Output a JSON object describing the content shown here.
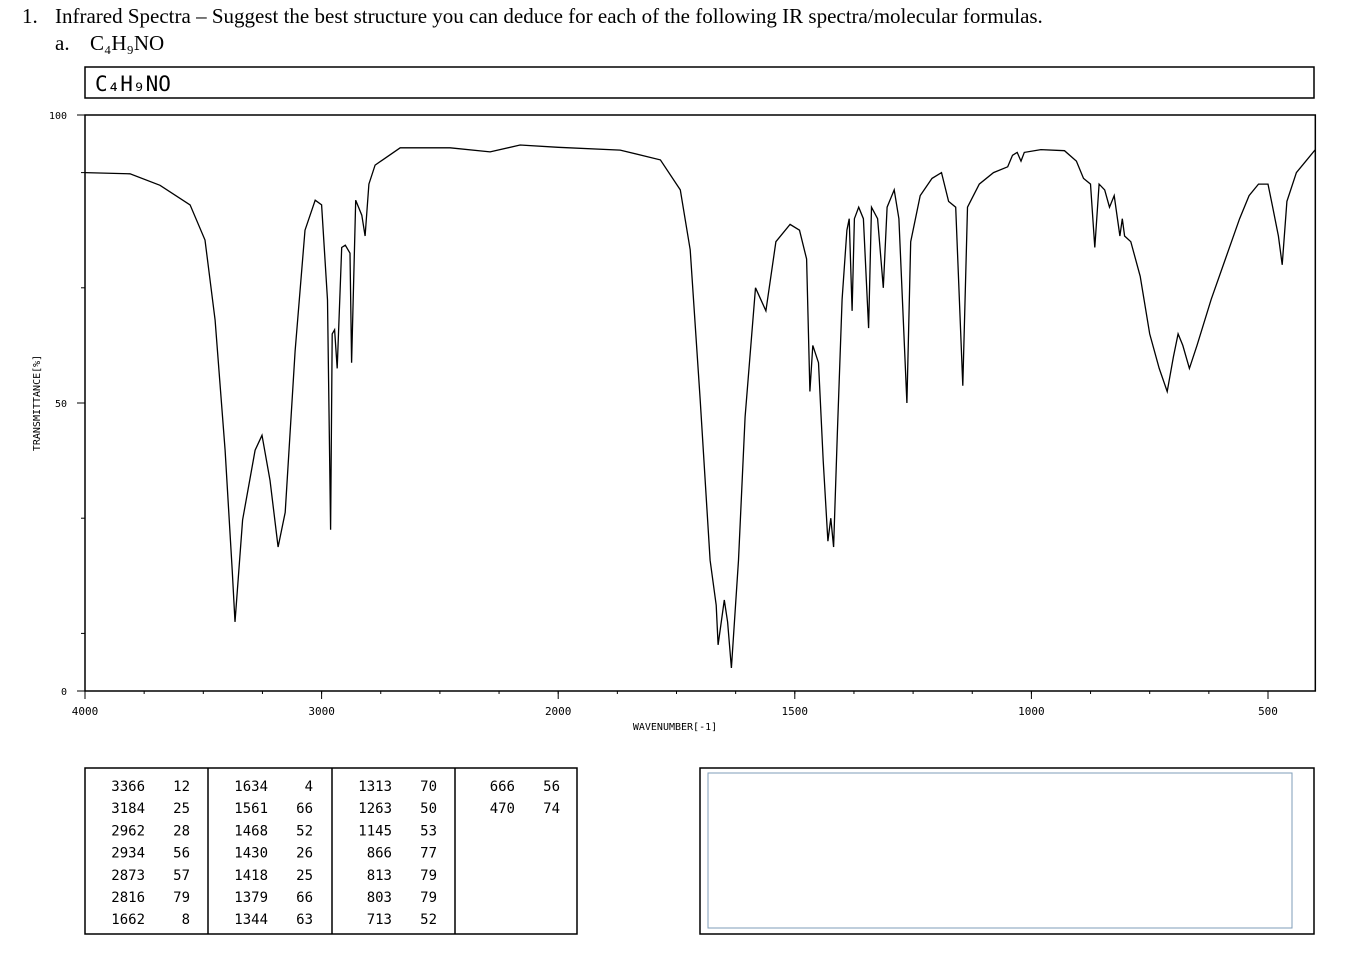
{
  "question": {
    "number": "1.",
    "title": "Infrared Spectra – Suggest the best structure you can deduce for each of the following IR spectra/molecular formulas.",
    "part": "a.",
    "formula": "C₄H₉NO"
  },
  "chart_data": {
    "type": "line",
    "title": "C₄H₉NO",
    "x_label": "WAVENUMBER[-1]",
    "y_label": "TRANSMITTANCE[%]",
    "color": "#000000",
    "xlim": [
      4000,
      400
    ],
    "ylim": [
      0,
      100
    ],
    "xticks": [
      4000,
      3000,
      2000,
      1500,
      1000,
      500
    ],
    "yticks": [
      0,
      50,
      100
    ],
    "x": [
      4000,
      3810,
      3683,
      3556,
      3493,
      3450,
      3408,
      3378,
      3366,
      3334,
      3281,
      3252,
      3218,
      3184,
      3154,
      3112,
      3070,
      3027,
      3000,
      2975,
      2962,
      2955,
      2945,
      2934,
      2915,
      2900,
      2880,
      2873,
      2856,
      2830,
      2816,
      2800,
      2774,
      2668,
      2457,
      2288,
      2161,
      2000,
      1869,
      1784,
      1742,
      1721,
      1700,
      1679,
      1666,
      1662,
      1649,
      1642,
      1634,
      1619,
      1605,
      1583,
      1561,
      1540,
      1510,
      1490,
      1475,
      1468,
      1462,
      1450,
      1440,
      1430,
      1424,
      1418,
      1410,
      1400,
      1390,
      1385,
      1379,
      1374,
      1365,
      1355,
      1344,
      1338,
      1325,
      1313,
      1305,
      1290,
      1280,
      1263,
      1255,
      1235,
      1210,
      1190,
      1175,
      1160,
      1145,
      1135,
      1110,
      1080,
      1050,
      1040,
      1030,
      1022,
      1015,
      980,
      930,
      905,
      890,
      875,
      866,
      857,
      845,
      835,
      825,
      813,
      808,
      803,
      790,
      770,
      750,
      730,
      713,
      700,
      690,
      680,
      666,
      650,
      620,
      590,
      560,
      540,
      520,
      500,
      490,
      478,
      470,
      460,
      440,
      420,
      400
    ],
    "values": [
      90,
      89.8,
      87.8,
      84.4,
      78.3,
      64.4,
      41.8,
      21,
      12,
      29.7,
      41.8,
      44.4,
      36.6,
      25,
      31,
      59,
      80,
      85.2,
      84.4,
      67.9,
      28,
      62,
      62.7,
      56,
      77,
      77.4,
      76,
      57,
      85.2,
      82.6,
      79,
      88,
      91.3,
      94.3,
      94.3,
      93.6,
      94.8,
      94.4,
      93.9,
      92.2,
      87,
      76.6,
      50.5,
      22.7,
      14.9,
      8,
      15.8,
      12,
      4,
      22.7,
      47.6,
      70,
      66,
      78,
      81,
      80,
      75,
      52,
      60,
      57,
      40,
      26,
      30,
      25,
      45,
      68,
      80,
      82,
      66,
      82,
      84,
      82,
      63,
      84,
      82,
      70,
      84,
      87,
      82,
      50,
      78,
      86,
      89,
      90,
      85,
      84,
      53,
      84,
      88,
      90,
      91,
      93,
      93.5,
      92,
      93.5,
      94,
      93.8,
      92,
      89,
      88,
      77,
      88,
      87,
      84,
      86,
      79,
      82,
      79,
      78,
      72,
      62,
      56,
      52,
      58,
      62,
      60,
      56,
      60,
      68,
      75,
      82,
      86,
      88,
      88,
      84,
      79,
      74,
      85,
      90,
      92,
      94
    ]
  },
  "peak_table": {
    "columns": [
      [
        [
          "3366",
          "12"
        ],
        [
          "3184",
          "25"
        ],
        [
          "2962",
          "28"
        ],
        [
          "2934",
          "56"
        ],
        [
          "2873",
          "57"
        ],
        [
          "2816",
          "79"
        ],
        [
          "1662",
          "8"
        ]
      ],
      [
        [
          "1634",
          "4"
        ],
        [
          "1561",
          "66"
        ],
        [
          "1468",
          "52"
        ],
        [
          "1430",
          "26"
        ],
        [
          "1418",
          "25"
        ],
        [
          "1379",
          "66"
        ],
        [
          "1344",
          "63"
        ]
      ],
      [
        [
          "1313",
          "70"
        ],
        [
          "1263",
          "50"
        ],
        [
          "1145",
          "53"
        ],
        [
          "866",
          "77"
        ],
        [
          "813",
          "79"
        ],
        [
          "803",
          "79"
        ],
        [
          "713",
          "52"
        ]
      ],
      [
        [
          "666",
          "56"
        ],
        [
          "470",
          "74"
        ]
      ]
    ]
  }
}
